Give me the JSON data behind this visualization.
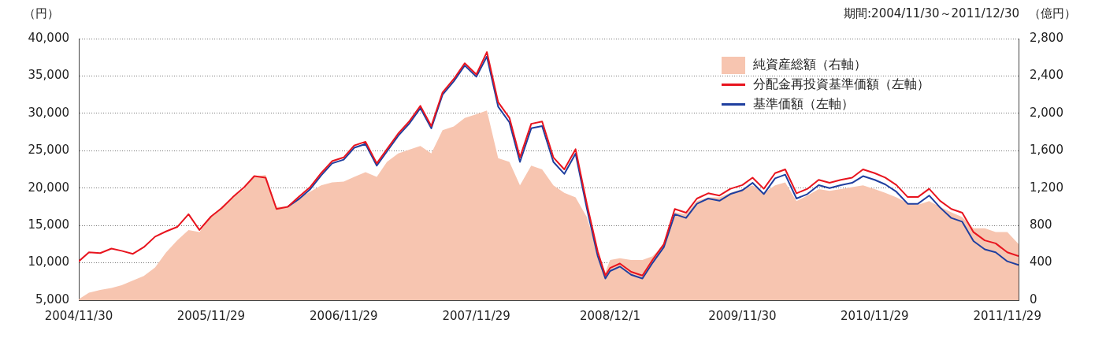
{
  "chart_data": {
    "type": "line",
    "ylabel": "（円）",
    "y2label": "（億円）",
    "annotations": [
      "期間:2004/11/30～2011/12/30"
    ],
    "x": [
      "2004-11-30",
      "2004-12-28",
      "2005-01-28",
      "2005-02-28",
      "2005-03-28",
      "2005-04-28",
      "2005-05-28",
      "2005-06-28",
      "2005-07-28",
      "2005-08-28",
      "2005-09-28",
      "2005-10-28",
      "2005-11-29",
      "2005-12-28",
      "2006-01-28",
      "2006-02-28",
      "2006-03-28",
      "2006-04-28",
      "2006-05-28",
      "2006-06-28",
      "2006-07-28",
      "2006-08-28",
      "2006-09-28",
      "2006-10-28",
      "2006-11-29",
      "2006-12-28",
      "2007-01-28",
      "2007-02-28",
      "2007-03-28",
      "2007-04-28",
      "2007-05-28",
      "2007-06-28",
      "2007-07-28",
      "2007-08-28",
      "2007-09-28",
      "2007-10-28",
      "2007-11-29",
      "2007-12-28",
      "2008-01-28",
      "2008-02-28",
      "2008-03-28",
      "2008-04-28",
      "2008-05-28",
      "2008-06-28",
      "2008-07-28",
      "2008-08-28",
      "2008-09-28",
      "2008-10-28",
      "2008-11-18",
      "2008-12-01",
      "2008-12-28",
      "2009-01-28",
      "2009-02-28",
      "2009-03-28",
      "2009-04-28",
      "2009-05-28",
      "2009-06-28",
      "2009-07-28",
      "2009-08-28",
      "2009-09-28",
      "2009-10-28",
      "2009-11-30",
      "2009-12-28",
      "2010-01-28",
      "2010-02-28",
      "2010-03-28",
      "2010-04-28",
      "2010-05-28",
      "2010-06-28",
      "2010-07-28",
      "2010-08-28",
      "2010-09-28",
      "2010-10-28",
      "2010-11-29",
      "2010-12-28",
      "2011-01-28",
      "2011-02-28",
      "2011-03-28",
      "2011-04-28",
      "2011-05-28",
      "2011-06-28",
      "2011-07-28",
      "2011-08-28",
      "2011-09-28",
      "2011-10-28",
      "2011-11-29",
      "2011-12-30"
    ],
    "series": [
      {
        "name": "純資産総額（右軸）",
        "type": "area",
        "axis": "y2",
        "color": "#f7c5b0",
        "values": [
          10,
          80,
          110,
          130,
          160,
          210,
          260,
          350,
          510,
          640,
          750,
          730,
          890,
          1000,
          1100,
          1190,
          1320,
          1340,
          1000,
          1000,
          1090,
          1160,
          1230,
          1260,
          1270,
          1320,
          1370,
          1320,
          1480,
          1570,
          1610,
          1650,
          1570,
          1820,
          1860,
          1950,
          1990,
          2030,
          1520,
          1480,
          1230,
          1440,
          1400,
          1230,
          1150,
          1100,
          890,
          510,
          300,
          430,
          450,
          430,
          430,
          470,
          600,
          940,
          920,
          1060,
          1100,
          1100,
          1150,
          1190,
          1230,
          1150,
          1230,
          1260,
          1060,
          1120,
          1190,
          1170,
          1190,
          1210,
          1230,
          1190,
          1150,
          1100,
          1040,
          1020,
          1060,
          1000,
          940,
          890,
          770,
          770,
          730,
          730,
          600
        ]
      },
      {
        "name": "分配金再投資基準価額（左軸）",
        "color": "#e8141e",
        "values": [
          10200,
          11400,
          11300,
          11900,
          11600,
          11200,
          12100,
          13500,
          14200,
          14800,
          16500,
          14400,
          16200,
          17300,
          18800,
          20100,
          21600,
          21400,
          17200,
          17500,
          18800,
          20100,
          22000,
          23600,
          24100,
          25700,
          26200,
          23300,
          25200,
          27300,
          28900,
          31000,
          28300,
          32800,
          34600,
          36700,
          35200,
          38200,
          31500,
          29400,
          24100,
          28600,
          28900,
          24100,
          22500,
          25200,
          17900,
          11500,
          8300,
          9300,
          9900,
          8800,
          8300,
          10400,
          12500,
          17200,
          16700,
          18600,
          19300,
          19000,
          19900,
          20400,
          21400,
          19900,
          22000,
          22500,
          19300,
          19900,
          21100,
          20700,
          21100,
          21400,
          22500,
          22000,
          21400,
          20400,
          18800,
          18800,
          19900,
          18300,
          17200,
          16700,
          14100,
          13000,
          12600,
          11400,
          10900
        ]
      },
      {
        "name": "基準価額（左軸）",
        "color": "#1f3f9f",
        "values": [
          null,
          null,
          null,
          null,
          null,
          null,
          null,
          null,
          null,
          null,
          null,
          null,
          null,
          null,
          null,
          null,
          null,
          null,
          null,
          17500,
          18500,
          19800,
          21700,
          23300,
          23800,
          25400,
          25900,
          23000,
          24900,
          27000,
          28600,
          30700,
          28000,
          32500,
          34300,
          36400,
          34900,
          37600,
          30900,
          28800,
          23500,
          28000,
          28300,
          23500,
          21900,
          24600,
          17300,
          10900,
          7900,
          8900,
          9500,
          8400,
          7900,
          10000,
          12100,
          16500,
          16000,
          17900,
          18600,
          18300,
          19200,
          19700,
          20700,
          19200,
          21300,
          21800,
          18600,
          19200,
          20400,
          20000,
          20400,
          20700,
          21600,
          21100,
          20500,
          19500,
          17900,
          17900,
          19000,
          17400,
          16000,
          15500,
          12900,
          11800,
          11400,
          10200,
          9700
        ]
      }
    ],
    "xlim": [
      "2004-11-30",
      "2011-12-30"
    ],
    "xticks": [
      {
        "value": "2004-11-30",
        "label": "2004/11/30"
      },
      {
        "value": "2005-11-29",
        "label": "2005/11/29"
      },
      {
        "value": "2006-11-29",
        "label": "2006/11/29"
      },
      {
        "value": "2007-11-29",
        "label": "2007/11/29"
      },
      {
        "value": "2008-12-01",
        "label": "2008/12/1"
      },
      {
        "value": "2009-11-30",
        "label": "2009/11/30"
      },
      {
        "value": "2010-11-29",
        "label": "2010/11/29"
      },
      {
        "value": "2011-11-29",
        "label": "2011/11/29"
      }
    ],
    "ylim": [
      5000,
      40000
    ],
    "yticks": [
      {
        "value": 5000,
        "label": "5,000"
      },
      {
        "value": 10000,
        "label": "10,000"
      },
      {
        "value": 15000,
        "label": "15,000"
      },
      {
        "value": 20000,
        "label": "20,000"
      },
      {
        "value": 25000,
        "label": "25,000"
      },
      {
        "value": 30000,
        "label": "30,000"
      },
      {
        "value": 35000,
        "label": "35,000"
      },
      {
        "value": 40000,
        "label": "40,000"
      }
    ],
    "y2lim": [
      0,
      2800
    ],
    "y2ticks": [
      0,
      400,
      800,
      {
        "value": 1200,
        "label": "1,200"
      },
      {
        "value": 1600,
        "label": "1,600"
      },
      {
        "value": 2000,
        "label": "2,000"
      },
      {
        "value": 2400,
        "label": "2,400"
      },
      {
        "value": 2800,
        "label": "2,800"
      }
    ],
    "grid": "y",
    "legend": "top right",
    "marker": "none",
    "line_style": "solid"
  }
}
